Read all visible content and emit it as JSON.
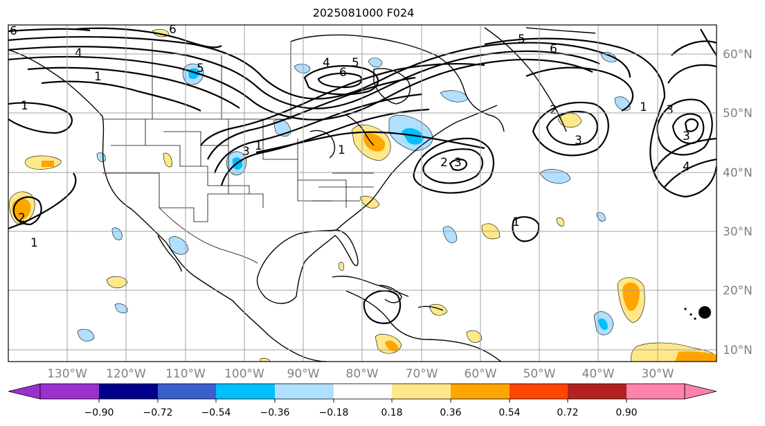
{
  "title": "2025081000 F024",
  "lat_labels": [
    "60°N",
    "50°N",
    "40°N",
    "30°N",
    "20°N",
    "10°N"
  ],
  "lon_labels": [
    "130°W",
    "120°W",
    "110°W",
    "100°W",
    "90°W",
    "80°W",
    "70°W",
    "60°W",
    "50°W",
    "40°W",
    "30°W"
  ],
  "colorbar": {
    "ticks": [
      "−0.90",
      "−0.72",
      "−0.54",
      "−0.36",
      "−0.18",
      "0.18",
      "0.36",
      "0.54",
      "0.72",
      "0.90"
    ],
    "colors": [
      "#9932cc",
      "#00008b",
      "#3a5fcd",
      "#00bfff",
      "#b0e0ff",
      "#ffffff",
      "#ffe88a",
      "#ffa500",
      "#ff4500",
      "#b22222",
      "#ff82ab"
    ],
    "extend": "both"
  },
  "contour_labels": [
    "6",
    "6",
    "4",
    "1",
    "1",
    "5",
    "4",
    "6",
    "5",
    "3",
    "5",
    "6",
    "1",
    "1",
    "2",
    "3",
    "3",
    "3",
    "1",
    "4",
    "2",
    "2",
    "3",
    "1",
    "1"
  ]
}
